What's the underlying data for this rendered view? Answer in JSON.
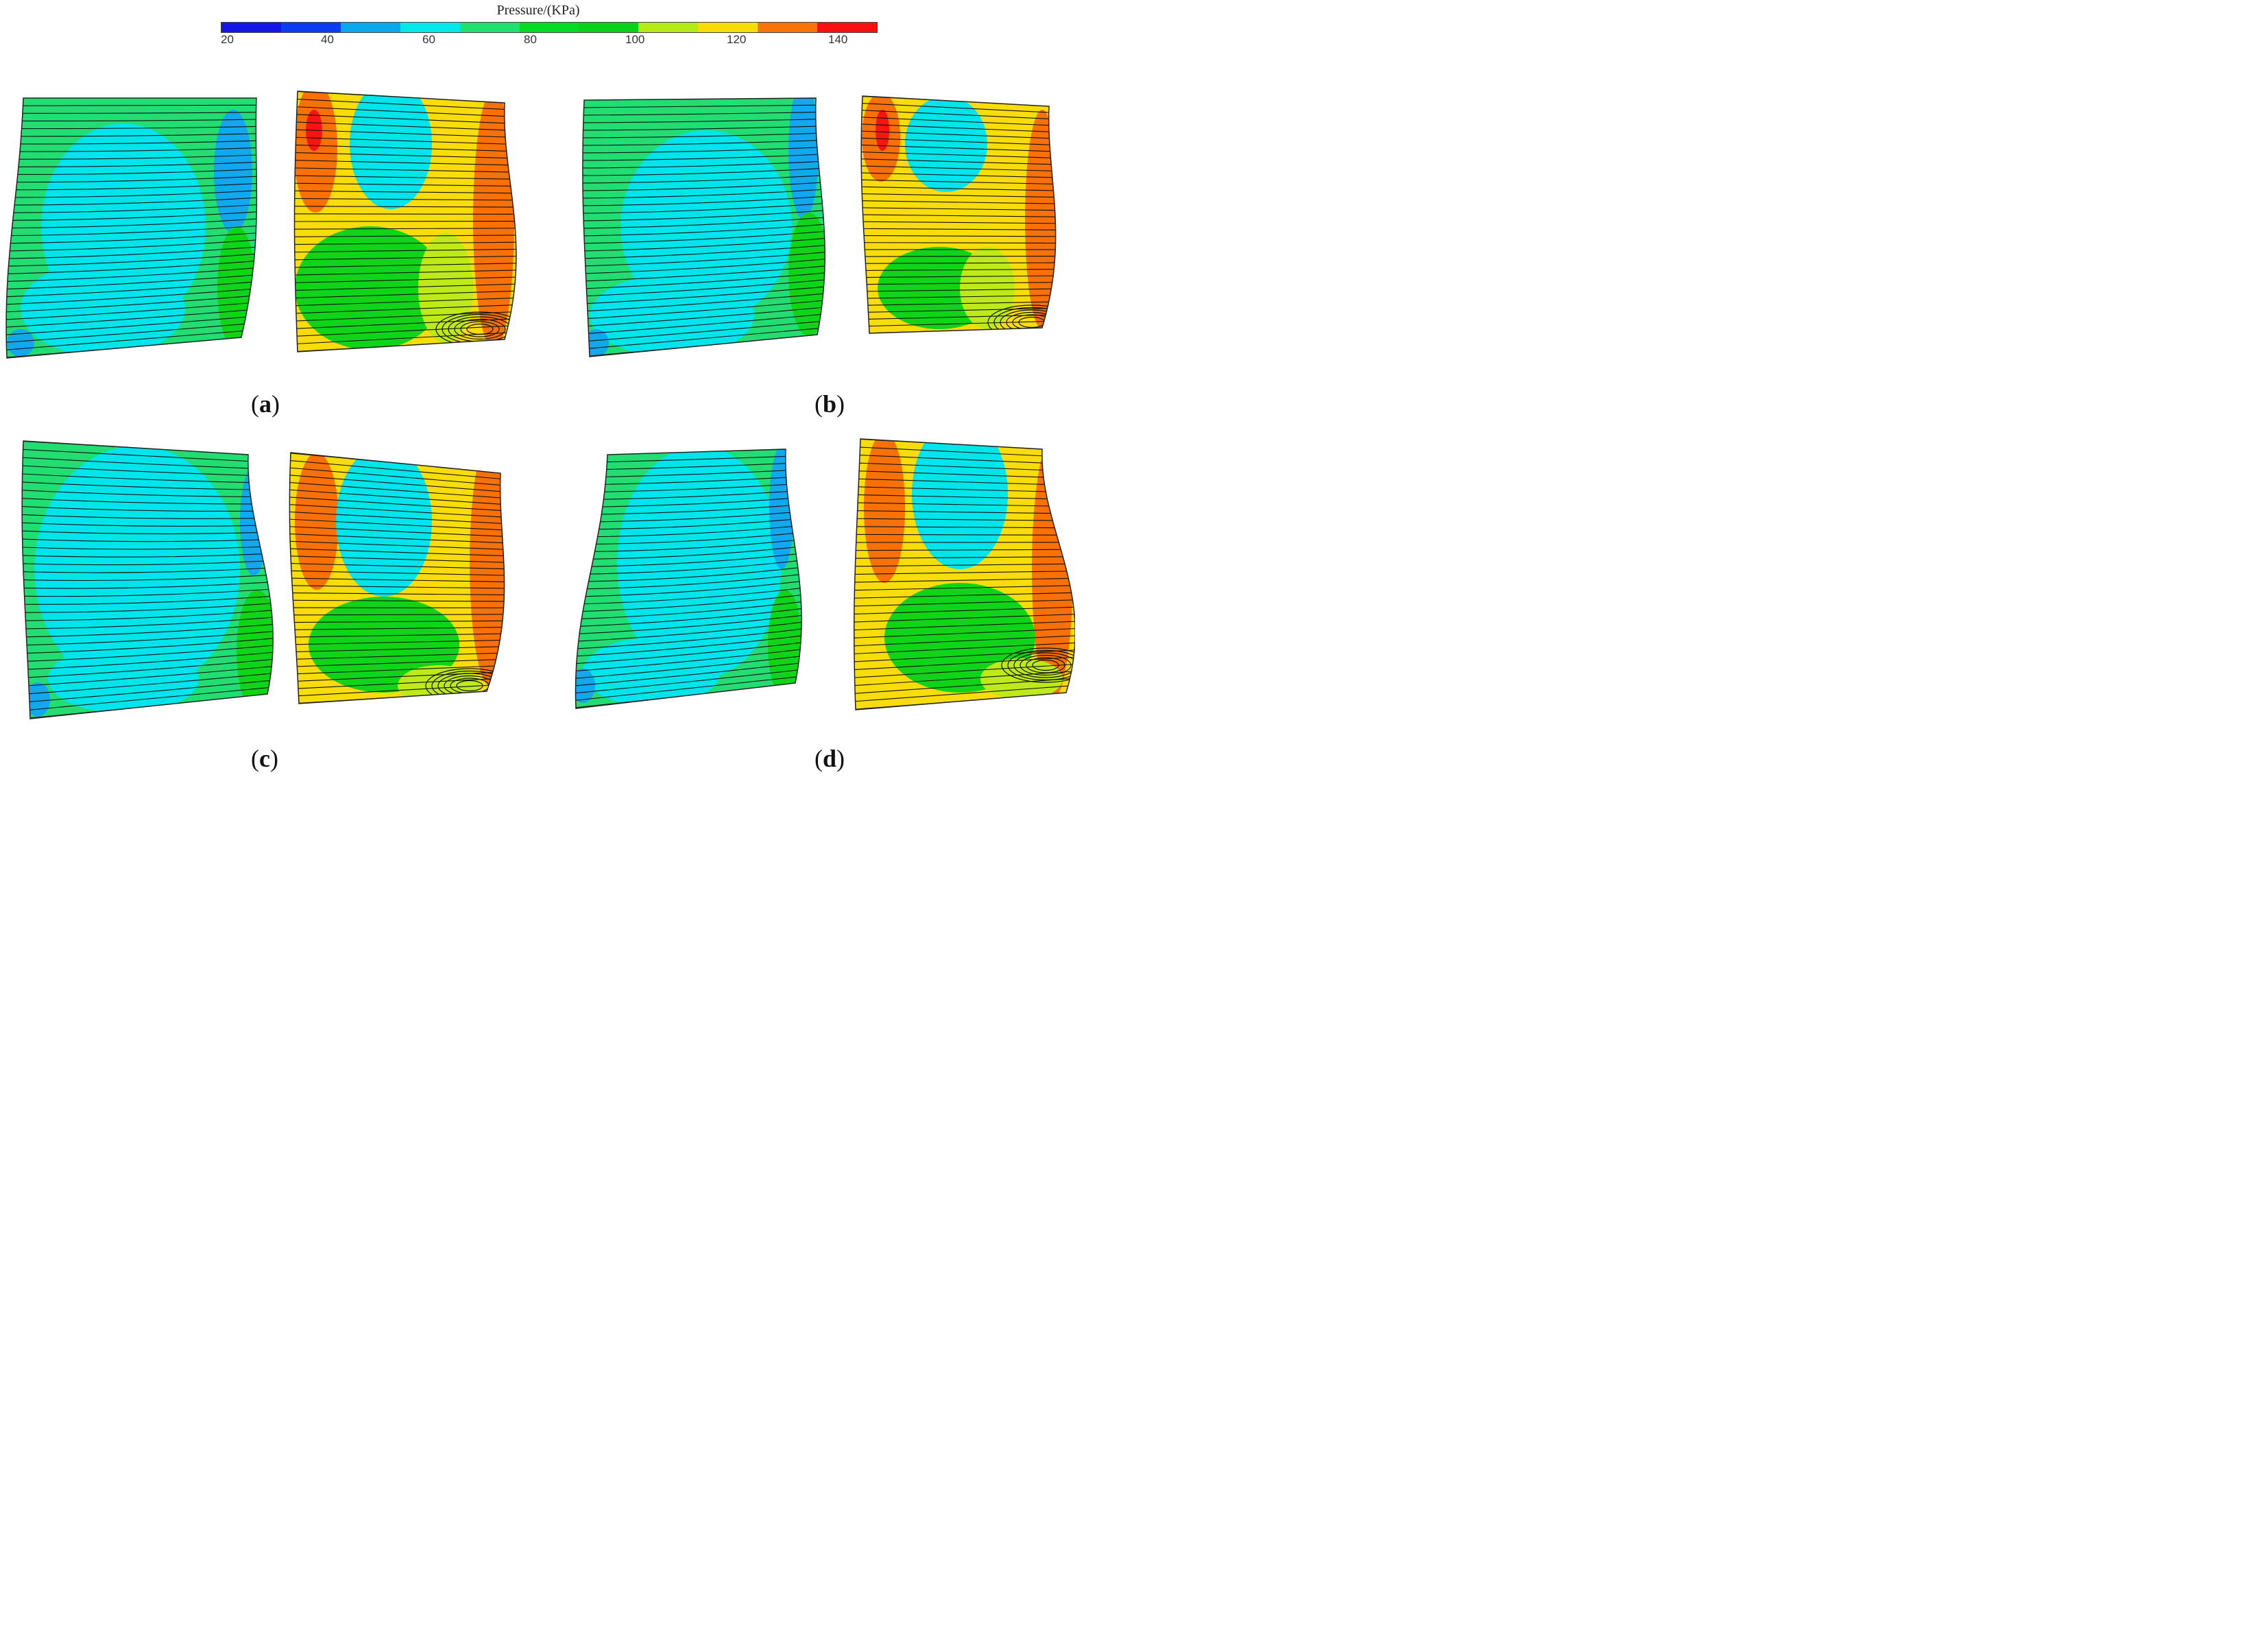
{
  "colorbar": {
    "title": "Pressure/(KPa)",
    "ticks": [
      "20",
      "40",
      "60",
      "80",
      "100",
      "120",
      "140"
    ],
    "colors": [
      "#1515e6",
      "#0a3cf0",
      "#0aa8ec",
      "#00e8e8",
      "#20e070",
      "#00dc24",
      "#06d21a",
      "#b6ea14",
      "#f8dc08",
      "#f87406",
      "#f81010"
    ]
  },
  "panels": [
    {
      "label": "a"
    },
    {
      "label": "b"
    },
    {
      "label": "c"
    },
    {
      "label": "d"
    }
  ]
}
